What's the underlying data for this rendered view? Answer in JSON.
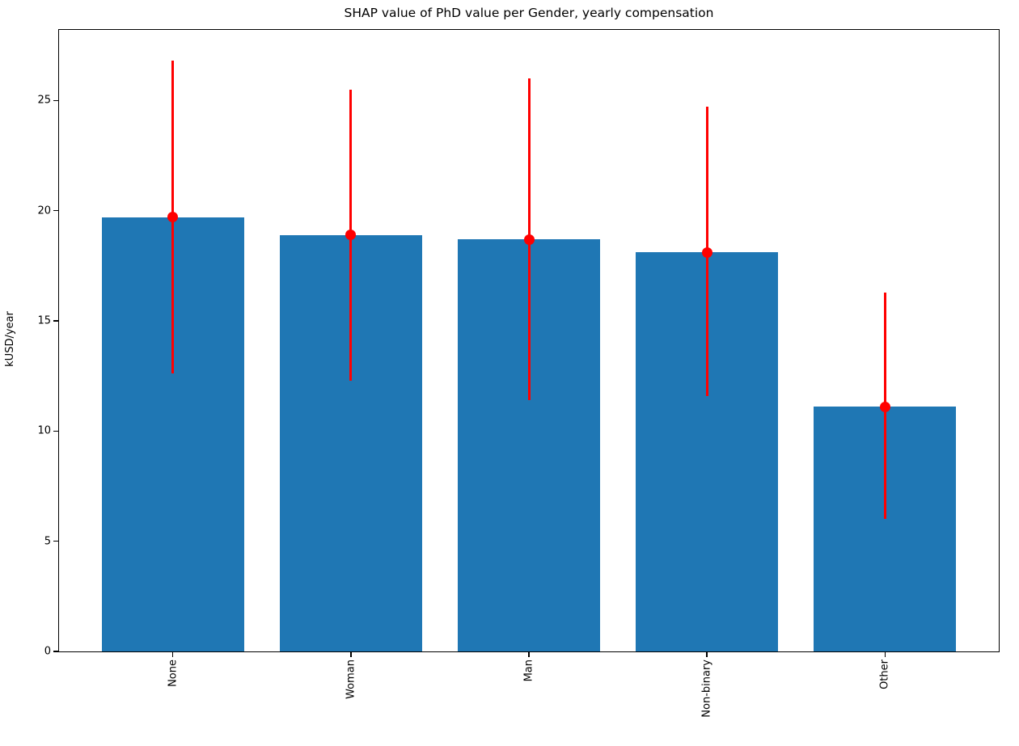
{
  "chart_data": {
    "type": "bar",
    "title": "SHAP value of PhD value per Gender, yearly compensation",
    "xlabel": "",
    "ylabel": "kUSD/year",
    "categories": [
      "None",
      "Woman",
      "Man",
      "Non-binary",
      "Other"
    ],
    "values": [
      19.7,
      18.9,
      18.7,
      18.1,
      11.1
    ],
    "error_low": [
      12.6,
      12.3,
      11.4,
      11.6,
      6.0
    ],
    "error_high": [
      26.8,
      25.5,
      26.0,
      24.7,
      16.3
    ],
    "yticks": [
      0,
      5,
      10,
      15,
      20,
      25
    ],
    "ylim": [
      0,
      28.2
    ],
    "xlim_units": [
      -0.64,
      4.64
    ],
    "bar_width_units": 0.8,
    "x_tick_rotation_deg": 90,
    "grid": false,
    "legend": null,
    "colors": {
      "bar": "#1f77b4",
      "error": "#ff0000",
      "axis": "#000000",
      "background": "#ffffff"
    }
  }
}
